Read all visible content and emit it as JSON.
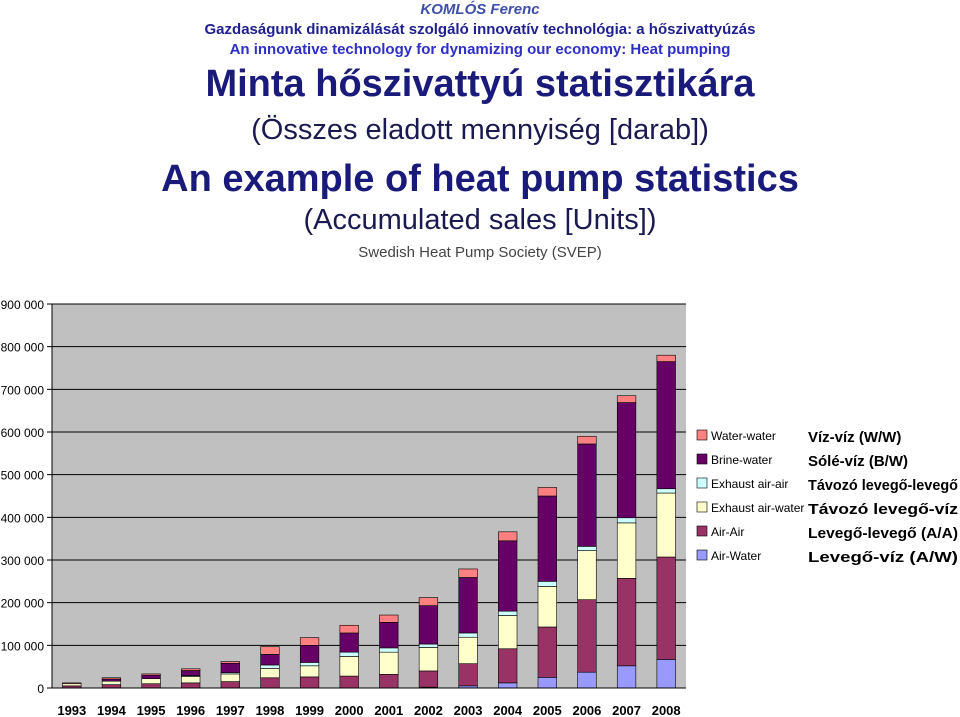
{
  "header": {
    "author": "KOMLÓS Ferenc",
    "line_hu": "Gazdaságunk dinamizálását szolgáló innovatív technológia: a hőszivattyúzás",
    "line_en": "An innovative technology for dynamizing our economy: Heat pumping",
    "title_hu": "Minta hőszivattyú statisztikára",
    "subtitle_hu": "(Összes eladott mennyiség [darab])",
    "title_en": "An example of heat pump statistics",
    "subtitle_en": "(Accumulated sales [Units])",
    "source": "Swedish Heat Pump Society (SVEP)"
  },
  "chart_data": {
    "type": "bar",
    "stacked": true,
    "categories": [
      "1993",
      "1994",
      "1995",
      "1996",
      "1997",
      "1998",
      "1999",
      "2000",
      "2001",
      "2002",
      "2003",
      "2004",
      "2005",
      "2006",
      "2007",
      "2008"
    ],
    "ylim": [
      0,
      900000
    ],
    "yticks": [
      0,
      100000,
      200000,
      300000,
      400000,
      500000,
      600000,
      700000,
      800000,
      900000
    ],
    "ytick_labels": [
      "0",
      "100 000",
      "200 000",
      "300 000",
      "400 000",
      "500 000",
      "600 000",
      "700 000",
      "800 000",
      "900 000"
    ],
    "grid": true,
    "legend_position": "right",
    "series": [
      {
        "name": "Air-Water",
        "name_hu": "Levegő-víz (A/W)",
        "color": "#9999ff",
        "values": [
          0,
          0,
          0,
          0,
          0,
          0,
          0,
          0,
          0,
          2000,
          5000,
          12000,
          25000,
          37000,
          52000,
          67000
        ]
      },
      {
        "name": "Air-Air",
        "name_hu": "Levegő-levegő (A/A)",
        "color": "#993366",
        "values": [
          5000,
          8000,
          10000,
          12000,
          15000,
          24000,
          26000,
          28000,
          32000,
          38000,
          52000,
          80000,
          118000,
          170000,
          205000,
          240000
        ]
      },
      {
        "name": "Exhaust air-water",
        "name_hu": "Távozó levegő-víz",
        "color": "#ffffcc",
        "values": [
          5000,
          8000,
          12000,
          15000,
          18000,
          22000,
          26000,
          46000,
          52000,
          55000,
          62000,
          78000,
          95000,
          115000,
          130000,
          150000
        ]
      },
      {
        "name": "Exhaust air-air",
        "name_hu": "Távozó levegő-levegő",
        "color": "#ccffff",
        "values": [
          0,
          0,
          0,
          2000,
          3000,
          8000,
          8000,
          10000,
          10000,
          8000,
          10000,
          10000,
          12000,
          10000,
          12000,
          10000
        ]
      },
      {
        "name": "Brine-water",
        "name_hu": "Sólé-víz (B/W)",
        "color": "#660066",
        "values": [
          0,
          5000,
          8000,
          12000,
          22000,
          25000,
          40000,
          45000,
          60000,
          90000,
          130000,
          165000,
          200000,
          240000,
          270000,
          298000
        ]
      },
      {
        "name": "Water-water",
        "name_hu": "Víz-víz (W/W)",
        "color": "#ff8080",
        "values": [
          2000,
          3000,
          3000,
          4000,
          4000,
          18000,
          18000,
          18000,
          17000,
          19000,
          20000,
          21000,
          20000,
          18000,
          16000,
          15000
        ]
      }
    ]
  }
}
